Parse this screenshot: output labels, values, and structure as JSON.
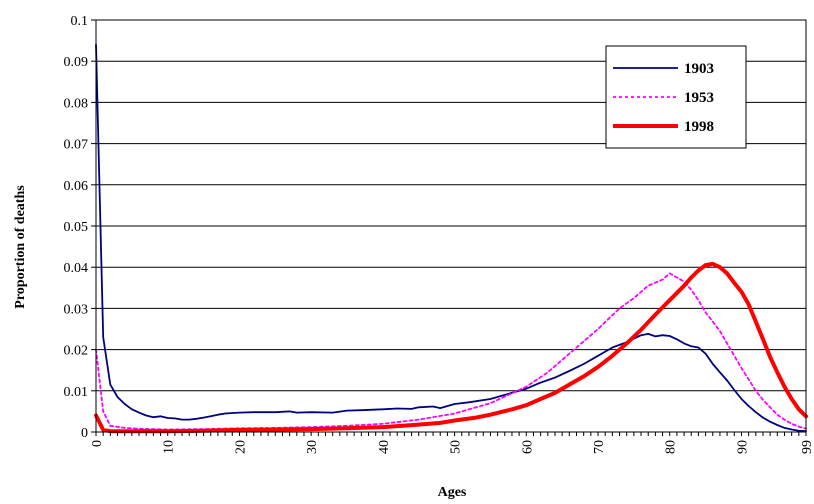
{
  "chart_data": {
    "type": "line",
    "title": "",
    "xlabel": "Ages",
    "ylabel": "Proportion of deaths",
    "xlim": [
      0,
      99
    ],
    "ylim": [
      0,
      0.1
    ],
    "x_ticks": [
      0,
      10,
      20,
      30,
      40,
      50,
      60,
      70,
      80,
      90,
      99
    ],
    "y_ticks": [
      "0",
      "0.01",
      "0.02",
      "0.03",
      "0.04",
      "0.05",
      "0.06",
      "0.07",
      "0.08",
      "0.09",
      "0.1"
    ],
    "grid": "horizontal",
    "legend_position": "top-right",
    "series": [
      {
        "name": "1903",
        "color": "#000080",
        "style": "solid-thin",
        "points": [
          [
            0,
            0.094
          ],
          [
            1,
            0.023
          ],
          [
            2,
            0.0115
          ],
          [
            3,
            0.0085
          ],
          [
            4,
            0.0068
          ],
          [
            5,
            0.0055
          ],
          [
            6,
            0.0047
          ],
          [
            7,
            0.004
          ],
          [
            8,
            0.0036
          ],
          [
            9,
            0.0038
          ],
          [
            10,
            0.0034
          ],
          [
            11,
            0.0033
          ],
          [
            12,
            0.003
          ],
          [
            13,
            0.003
          ],
          [
            14,
            0.0032
          ],
          [
            15,
            0.0035
          ],
          [
            16,
            0.0038
          ],
          [
            17,
            0.0042
          ],
          [
            18,
            0.0045
          ],
          [
            20,
            0.0047
          ],
          [
            22,
            0.0048
          ],
          [
            25,
            0.0048
          ],
          [
            27,
            0.005
          ],
          [
            28,
            0.0047
          ],
          [
            30,
            0.0048
          ],
          [
            33,
            0.0047
          ],
          [
            35,
            0.0052
          ],
          [
            37,
            0.0053
          ],
          [
            40,
            0.0055
          ],
          [
            42,
            0.0057
          ],
          [
            44,
            0.0056
          ],
          [
            45,
            0.006
          ],
          [
            47,
            0.0062
          ],
          [
            48,
            0.0058
          ],
          [
            50,
            0.0068
          ],
          [
            52,
            0.0072
          ],
          [
            55,
            0.008
          ],
          [
            57,
            0.009
          ],
          [
            60,
            0.0105
          ],
          [
            62,
            0.012
          ],
          [
            64,
            0.0132
          ],
          [
            66,
            0.0148
          ],
          [
            68,
            0.0165
          ],
          [
            70,
            0.0185
          ],
          [
            72,
            0.0205
          ],
          [
            74,
            0.0218
          ],
          [
            76,
            0.0235
          ],
          [
            77,
            0.0238
          ],
          [
            78,
            0.0232
          ],
          [
            79,
            0.0235
          ],
          [
            80,
            0.0233
          ],
          [
            81,
            0.0225
          ],
          [
            82,
            0.0215
          ],
          [
            83,
            0.0208
          ],
          [
            84,
            0.0205
          ],
          [
            85,
            0.019
          ],
          [
            86,
            0.0165
          ],
          [
            87,
            0.0145
          ],
          [
            88,
            0.0125
          ],
          [
            89,
            0.0102
          ],
          [
            90,
            0.008
          ],
          [
            91,
            0.0063
          ],
          [
            92,
            0.0048
          ],
          [
            93,
            0.0035
          ],
          [
            94,
            0.0025
          ],
          [
            95,
            0.0017
          ],
          [
            96,
            0.001
          ],
          [
            97,
            0.0006
          ],
          [
            98,
            0.0003
          ],
          [
            99,
            0.0002
          ]
        ]
      },
      {
        "name": "1953",
        "color": "#ff00ff",
        "style": "dotted",
        "points": [
          [
            0,
            0.02
          ],
          [
            1,
            0.005
          ],
          [
            2,
            0.0015
          ],
          [
            4,
            0.001
          ],
          [
            6,
            0.0008
          ],
          [
            10,
            0.0006
          ],
          [
            15,
            0.0007
          ],
          [
            20,
            0.0009
          ],
          [
            25,
            0.001
          ],
          [
            30,
            0.0012
          ],
          [
            35,
            0.0015
          ],
          [
            40,
            0.002
          ],
          [
            45,
            0.003
          ],
          [
            50,
            0.0045
          ],
          [
            55,
            0.007
          ],
          [
            60,
            0.011
          ],
          [
            63,
            0.0145
          ],
          [
            66,
            0.019
          ],
          [
            70,
            0.025
          ],
          [
            73,
            0.03
          ],
          [
            75,
            0.0325
          ],
          [
            77,
            0.0355
          ],
          [
            79,
            0.037
          ],
          [
            80,
            0.0385
          ],
          [
            81,
            0.0375
          ],
          [
            82,
            0.0365
          ],
          [
            83,
            0.0345
          ],
          [
            84,
            0.032
          ],
          [
            85,
            0.029
          ],
          [
            86,
            0.0268
          ],
          [
            87,
            0.0245
          ],
          [
            88,
            0.0215
          ],
          [
            89,
            0.0185
          ],
          [
            90,
            0.0155
          ],
          [
            91,
            0.0128
          ],
          [
            92,
            0.01
          ],
          [
            93,
            0.0078
          ],
          [
            94,
            0.006
          ],
          [
            95,
            0.0042
          ],
          [
            96,
            0.003
          ],
          [
            97,
            0.002
          ],
          [
            98,
            0.0013
          ],
          [
            99,
            0.0008
          ]
        ]
      },
      {
        "name": "1998",
        "color": "#ff0000",
        "style": "solid-thick",
        "points": [
          [
            0,
            0.004
          ],
          [
            1,
            0.0005
          ],
          [
            2,
            0.0002
          ],
          [
            5,
            0.0002
          ],
          [
            10,
            0.0002
          ],
          [
            15,
            0.0003
          ],
          [
            20,
            0.0005
          ],
          [
            25,
            0.0006
          ],
          [
            30,
            0.0007
          ],
          [
            35,
            0.0009
          ],
          [
            40,
            0.0012
          ],
          [
            45,
            0.0018
          ],
          [
            48,
            0.0022
          ],
          [
            50,
            0.0028
          ],
          [
            53,
            0.0035
          ],
          [
            55,
            0.0042
          ],
          [
            58,
            0.0055
          ],
          [
            60,
            0.0065
          ],
          [
            62,
            0.008
          ],
          [
            64,
            0.0095
          ],
          [
            66,
            0.0115
          ],
          [
            68,
            0.0135
          ],
          [
            70,
            0.0158
          ],
          [
            72,
            0.0185
          ],
          [
            74,
            0.0215
          ],
          [
            76,
            0.0248
          ],
          [
            78,
            0.0285
          ],
          [
            80,
            0.032
          ],
          [
            82,
            0.0355
          ],
          [
            83,
            0.0375
          ],
          [
            84,
            0.0392
          ],
          [
            85,
            0.0405
          ],
          [
            86,
            0.0408
          ],
          [
            87,
            0.04
          ],
          [
            88,
            0.0385
          ],
          [
            89,
            0.0362
          ],
          [
            90,
            0.034
          ],
          [
            91,
            0.031
          ],
          [
            92,
            0.0268
          ],
          [
            93,
            0.0225
          ],
          [
            94,
            0.0182
          ],
          [
            95,
            0.0145
          ],
          [
            96,
            0.011
          ],
          [
            97,
            0.008
          ],
          [
            98,
            0.0055
          ],
          [
            99,
            0.0038
          ]
        ]
      }
    ]
  }
}
